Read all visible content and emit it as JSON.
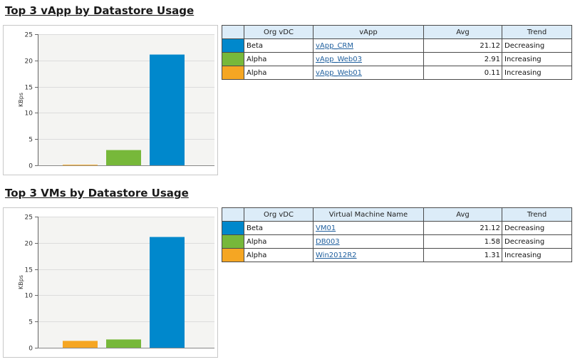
{
  "colors": {
    "series1": "#0088cc",
    "series2": "#77b83a",
    "series3": "#f5a623"
  },
  "sections": [
    {
      "title": "Top 3 vApp by Datastore Usage",
      "columns": [
        "Org vDC",
        "vApp",
        "Avg",
        "Trend"
      ],
      "rows": [
        {
          "color": "#0088cc",
          "org_vdc": "Beta",
          "name": "vApp_CRM",
          "avg": "21.12",
          "trend": "Decreasing"
        },
        {
          "color": "#77b83a",
          "org_vdc": "Alpha",
          "name": "vApp_Web03",
          "avg": "2.91",
          "trend": "Increasing"
        },
        {
          "color": "#f5a623",
          "org_vdc": "Alpha",
          "name": "vApp_Web01",
          "avg": "0.11",
          "trend": "Increasing"
        }
      ]
    },
    {
      "title": "Top 3 VMs by Datastore Usage",
      "columns": [
        "Org vDC",
        "Virtual Machine Name",
        "Avg",
        "Trend"
      ],
      "rows": [
        {
          "color": "#0088cc",
          "org_vdc": "Beta",
          "name": "VM01",
          "avg": "21.12",
          "trend": "Decreasing"
        },
        {
          "color": "#77b83a",
          "org_vdc": "Alpha",
          "name": "DB003",
          "avg": "1.58",
          "trend": "Decreasing"
        },
        {
          "color": "#f5a623",
          "org_vdc": "Alpha",
          "name": "Win2012R2",
          "avg": "1.31",
          "trend": "Increasing"
        }
      ]
    }
  ],
  "chart_data": [
    {
      "type": "bar",
      "title": "",
      "xlabel": "",
      "ylabel": "KBps",
      "ylim": [
        0,
        25
      ],
      "yticks": [
        0,
        5,
        10,
        15,
        20,
        25
      ],
      "grid": true,
      "bars": [
        {
          "value": 0.11,
          "color": "#f5a623"
        },
        {
          "value": 2.91,
          "color": "#77b83a"
        },
        {
          "value": 21.12,
          "color": "#0088cc"
        }
      ]
    },
    {
      "type": "bar",
      "title": "",
      "xlabel": "",
      "ylabel": "KBps",
      "ylim": [
        0,
        25
      ],
      "yticks": [
        0,
        5,
        10,
        15,
        20,
        25
      ],
      "grid": true,
      "bars": [
        {
          "value": 1.31,
          "color": "#f5a623"
        },
        {
          "value": 1.58,
          "color": "#77b83a"
        },
        {
          "value": 21.12,
          "color": "#0088cc"
        }
      ]
    }
  ]
}
